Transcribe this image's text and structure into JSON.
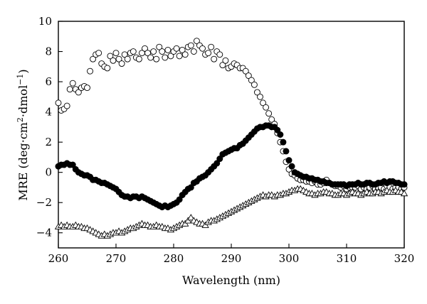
{
  "chart_data": {
    "type": "scatter",
    "title": "",
    "xlabel": "Wavelength (nm)",
    "ylabel": {
      "prefix": "MRE (deg·cm",
      "sup1": "2",
      "middle": "·dmol",
      "sup2": "−1",
      "suffix": ")"
    },
    "xlim": [
      260,
      320
    ],
    "ylim": [
      -5,
      10
    ],
    "x_ticks": [
      260,
      270,
      280,
      290,
      300,
      310,
      320
    ],
    "y_ticks": [
      -4,
      -2,
      0,
      2,
      4,
      6,
      8,
      10
    ],
    "x_tick_labels": [
      "260",
      "270",
      "280",
      "290",
      "300",
      "310",
      "320"
    ],
    "y_tick_labels": [
      "−4",
      "−2",
      "0",
      "2",
      "4",
      "6",
      "8",
      "10"
    ],
    "grid": false,
    "series": [
      {
        "marker": "open-circle",
        "color": "#000000",
        "x": [
          260.0,
          260.5,
          261.0,
          261.5,
          262.0,
          262.5,
          263.0,
          263.5,
          264.0,
          264.5,
          265.0,
          265.5,
          266.0,
          266.5,
          267.0,
          267.5,
          268.0,
          268.5,
          269.0,
          269.5,
          270.0,
          270.5,
          271.0,
          271.5,
          272.0,
          272.5,
          273.0,
          273.5,
          274.0,
          274.5,
          275.0,
          275.5,
          276.0,
          276.5,
          277.0,
          277.5,
          278.0,
          278.5,
          279.0,
          279.5,
          280.0,
          280.5,
          281.0,
          281.5,
          282.0,
          282.5,
          283.0,
          283.5,
          284.0,
          284.5,
          285.0,
          285.5,
          286.0,
          286.5,
          287.0,
          287.5,
          288.0,
          288.5,
          289.0,
          289.5,
          290.0,
          290.5,
          291.0,
          291.5,
          292.0,
          292.5,
          293.0,
          293.5,
          294.0,
          294.5,
          295.0,
          295.5,
          296.0,
          296.5,
          297.0,
          297.5,
          298.0,
          298.5,
          299.0,
          299.5,
          300.0,
          300.5,
          301.0,
          301.5,
          302.0,
          302.5,
          303.0,
          303.5,
          304.0,
          304.5,
          305.0,
          305.5,
          306.0,
          306.5,
          307.0,
          307.5,
          308.0,
          308.5,
          309.0,
          309.5,
          310.0,
          310.5,
          311.0,
          311.5,
          312.0,
          312.5,
          313.0,
          313.5,
          314.0,
          314.5,
          315.0,
          315.5,
          316.0,
          316.5,
          317.0,
          317.5,
          318.0,
          318.5,
          319.0,
          319.5,
          320.0
        ],
        "y": [
          4.6,
          4.1,
          4.2,
          4.4,
          5.5,
          5.9,
          5.5,
          5.3,
          5.6,
          5.7,
          5.6,
          6.7,
          7.5,
          7.8,
          7.9,
          7.2,
          7.0,
          6.9,
          7.7,
          7.4,
          7.9,
          7.5,
          7.2,
          7.8,
          7.5,
          7.9,
          8.0,
          7.6,
          7.5,
          7.9,
          8.2,
          7.9,
          7.6,
          8.0,
          7.5,
          8.3,
          8.0,
          7.6,
          8.1,
          7.7,
          8.0,
          8.2,
          7.7,
          8.1,
          7.8,
          8.3,
          8.4,
          8.0,
          8.7,
          8.4,
          8.2,
          7.8,
          7.9,
          8.3,
          7.5,
          8.0,
          7.8,
          7.1,
          7.4,
          6.9,
          7.0,
          7.2,
          7.1,
          6.9,
          6.9,
          6.7,
          6.4,
          6.1,
          5.8,
          5.3,
          5.0,
          4.6,
          4.3,
          3.9,
          3.5,
          3.2,
          2.6,
          2.0,
          1.4,
          0.7,
          0.2,
          -0.1,
          -0.2,
          -0.4,
          -0.5,
          -0.5,
          -0.6,
          -0.6,
          -0.7,
          -0.6,
          -0.8,
          -0.8,
          -0.7,
          -0.5,
          -0.7,
          -0.8,
          -0.9,
          -0.9,
          -1.0,
          -0.9,
          -1.1,
          -1.0,
          -1.0,
          -1.0,
          -0.9,
          -1.1,
          -1.0,
          -1.1,
          -1.0,
          -0.9,
          -1.1,
          -1.0,
          -1.0,
          -1.1,
          -0.9,
          -1.0,
          -1.1,
          -1.0,
          -1.0,
          -1.1,
          -1.0
        ]
      },
      {
        "marker": "filled-circle",
        "color": "#000000",
        "x": [
          260.0,
          260.5,
          261.0,
          261.5,
          262.0,
          262.5,
          263.0,
          263.5,
          264.0,
          264.5,
          265.0,
          265.5,
          266.0,
          266.5,
          267.0,
          267.5,
          268.0,
          268.5,
          269.0,
          269.5,
          270.0,
          270.5,
          271.0,
          271.5,
          272.0,
          272.5,
          273.0,
          273.5,
          274.0,
          274.5,
          275.0,
          275.5,
          276.0,
          276.5,
          277.0,
          277.5,
          278.0,
          278.5,
          279.0,
          279.5,
          280.0,
          280.5,
          281.0,
          281.5,
          282.0,
          282.5,
          283.0,
          283.5,
          284.0,
          284.5,
          285.0,
          285.5,
          286.0,
          286.5,
          287.0,
          287.5,
          288.0,
          288.5,
          289.0,
          289.5,
          290.0,
          290.5,
          291.0,
          291.5,
          292.0,
          292.5,
          293.0,
          293.5,
          294.0,
          294.5,
          295.0,
          295.5,
          296.0,
          296.5,
          297.0,
          297.5,
          298.0,
          298.5,
          299.0,
          299.5,
          300.0,
          300.5,
          301.0,
          301.5,
          302.0,
          302.5,
          303.0,
          303.5,
          304.0,
          304.5,
          305.0,
          305.5,
          306.0,
          306.5,
          307.0,
          307.5,
          308.0,
          308.5,
          309.0,
          309.5,
          310.0,
          310.5,
          311.0,
          311.5,
          312.0,
          312.5,
          313.0,
          313.5,
          314.0,
          314.5,
          315.0,
          315.5,
          316.0,
          316.5,
          317.0,
          317.5,
          318.0,
          318.5,
          319.0,
          319.5,
          320.0
        ],
        "y": [
          0.4,
          0.5,
          0.5,
          0.6,
          0.5,
          0.5,
          0.2,
          0.0,
          -0.1,
          -0.2,
          -0.2,
          -0.3,
          -0.5,
          -0.5,
          -0.6,
          -0.7,
          -0.7,
          -0.8,
          -0.9,
          -1.0,
          -1.1,
          -1.3,
          -1.5,
          -1.6,
          -1.6,
          -1.7,
          -1.6,
          -1.6,
          -1.7,
          -1.6,
          -1.7,
          -1.8,
          -1.9,
          -2.0,
          -2.1,
          -2.2,
          -2.3,
          -2.2,
          -2.3,
          -2.2,
          -2.1,
          -2.0,
          -1.8,
          -1.5,
          -1.3,
          -1.1,
          -1.0,
          -0.7,
          -0.6,
          -0.4,
          -0.3,
          -0.2,
          0.0,
          0.2,
          0.4,
          0.6,
          0.9,
          1.2,
          1.3,
          1.4,
          1.5,
          1.6,
          1.6,
          1.8,
          1.9,
          2.1,
          2.3,
          2.5,
          2.7,
          2.9,
          3.0,
          3.0,
          3.1,
          3.1,
          3.0,
          3.0,
          2.8,
          2.5,
          2.0,
          1.4,
          0.8,
          0.4,
          0.0,
          -0.1,
          -0.2,
          -0.3,
          -0.3,
          -0.4,
          -0.4,
          -0.5,
          -0.5,
          -0.6,
          -0.6,
          -0.7,
          -0.7,
          -0.8,
          -0.8,
          -0.8,
          -0.8,
          -0.8,
          -0.9,
          -0.8,
          -0.8,
          -0.8,
          -0.7,
          -0.8,
          -0.8,
          -0.7,
          -0.7,
          -0.8,
          -0.8,
          -0.7,
          -0.7,
          -0.6,
          -0.7,
          -0.6,
          -0.6,
          -0.7,
          -0.7,
          -0.8,
          -0.8
        ]
      },
      {
        "marker": "open-triangle",
        "color": "#000000",
        "x": [
          260.0,
          260.5,
          261.0,
          261.5,
          262.0,
          262.5,
          263.0,
          263.5,
          264.0,
          264.5,
          265.0,
          265.5,
          266.0,
          266.5,
          267.0,
          267.5,
          268.0,
          268.5,
          269.0,
          269.5,
          270.0,
          270.5,
          271.0,
          271.5,
          272.0,
          272.5,
          273.0,
          273.5,
          274.0,
          274.5,
          275.0,
          275.5,
          276.0,
          276.5,
          277.0,
          277.5,
          278.0,
          278.5,
          279.0,
          279.5,
          280.0,
          280.5,
          281.0,
          281.5,
          282.0,
          282.5,
          283.0,
          283.5,
          284.0,
          284.5,
          285.0,
          285.5,
          286.0,
          286.5,
          287.0,
          287.5,
          288.0,
          288.5,
          289.0,
          289.5,
          290.0,
          290.5,
          291.0,
          291.5,
          292.0,
          292.5,
          293.0,
          293.5,
          294.0,
          294.5,
          295.0,
          295.5,
          296.0,
          296.5,
          297.0,
          297.5,
          298.0,
          298.5,
          299.0,
          299.5,
          300.0,
          300.5,
          301.0,
          301.5,
          302.0,
          302.5,
          303.0,
          303.5,
          304.0,
          304.5,
          305.0,
          305.5,
          306.0,
          306.5,
          307.0,
          307.5,
          308.0,
          308.5,
          309.0,
          309.5,
          310.0,
          310.5,
          311.0,
          311.5,
          312.0,
          312.5,
          313.0,
          313.5,
          314.0,
          314.5,
          315.0,
          315.5,
          316.0,
          316.5,
          317.0,
          317.5,
          318.0,
          318.5,
          319.0,
          319.5,
          320.0
        ],
        "y": [
          -3.6,
          -3.5,
          -3.6,
          -3.5,
          -3.6,
          -3.6,
          -3.5,
          -3.6,
          -3.6,
          -3.7,
          -3.7,
          -3.8,
          -3.9,
          -4.0,
          -4.1,
          -4.2,
          -4.1,
          -4.2,
          -4.1,
          -4.0,
          -4.0,
          -3.9,
          -4.0,
          -3.9,
          -3.8,
          -3.7,
          -3.7,
          -3.6,
          -3.5,
          -3.4,
          -3.5,
          -3.5,
          -3.6,
          -3.6,
          -3.5,
          -3.6,
          -3.6,
          -3.7,
          -3.7,
          -3.8,
          -3.7,
          -3.6,
          -3.5,
          -3.4,
          -3.4,
          -3.2,
          -3.0,
          -3.2,
          -3.3,
          -3.4,
          -3.4,
          -3.5,
          -3.3,
          -3.2,
          -3.2,
          -3.1,
          -3.0,
          -2.9,
          -2.8,
          -2.7,
          -2.6,
          -2.5,
          -2.4,
          -2.3,
          -2.2,
          -2.1,
          -2.0,
          -1.9,
          -1.8,
          -1.7,
          -1.6,
          -1.5,
          -1.6,
          -1.5,
          -1.5,
          -1.6,
          -1.5,
          -1.5,
          -1.4,
          -1.4,
          -1.3,
          -1.2,
          -1.2,
          -1.1,
          -1.1,
          -1.2,
          -1.3,
          -1.4,
          -1.4,
          -1.5,
          -1.4,
          -1.4,
          -1.3,
          -1.3,
          -1.4,
          -1.4,
          -1.5,
          -1.5,
          -1.4,
          -1.4,
          -1.5,
          -1.4,
          -1.3,
          -1.4,
          -1.4,
          -1.5,
          -1.4,
          -1.3,
          -1.4,
          -1.4,
          -1.3,
          -1.3,
          -1.4,
          -1.3,
          -1.2,
          -1.3,
          -1.3,
          -1.2,
          -1.3,
          -1.3,
          -1.4
        ]
      }
    ]
  }
}
